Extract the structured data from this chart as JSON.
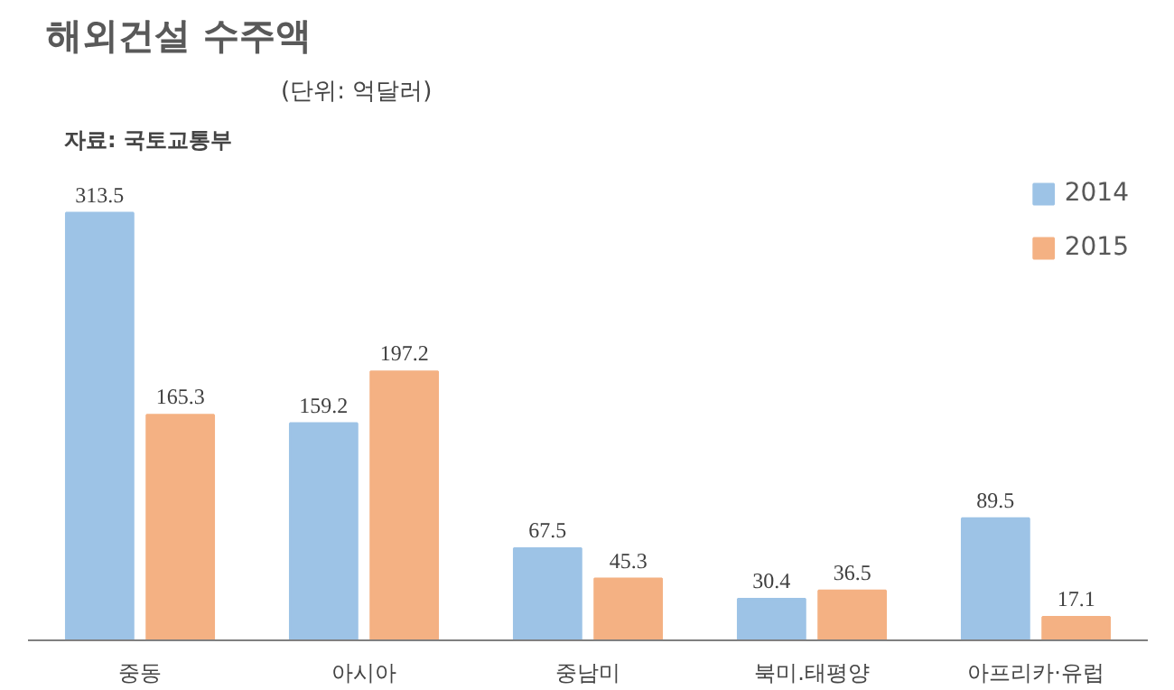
{
  "chart_data": {
    "type": "bar",
    "title": "해외건설 수주액",
    "subtitle": "(단위: 억달러)",
    "annotations": [
      "자료: 국토교통부"
    ],
    "categories": [
      "중동",
      "아시아",
      "중남미",
      "북미.태평양",
      "아프리카·유럽"
    ],
    "series": [
      {
        "name": "2014",
        "color": "#9dc3e6",
        "values": [
          313.5,
          159.2,
          67.5,
          30.4,
          89.5
        ]
      },
      {
        "name": "2015",
        "color": "#f4b183",
        "values": [
          165.3,
          197.2,
          45.3,
          36.5,
          17.1
        ]
      }
    ],
    "data_labels": true,
    "legend": "top right",
    "grid": false
  }
}
